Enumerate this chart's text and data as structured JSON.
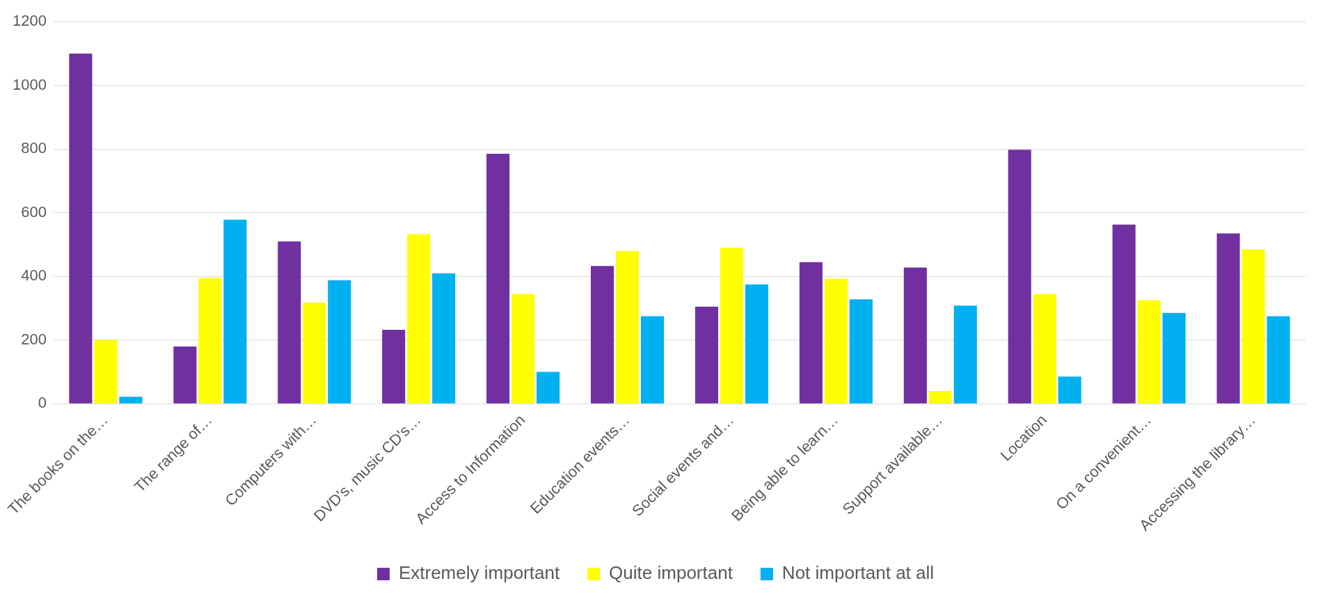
{
  "chart_data": {
    "type": "bar",
    "categories": [
      "The books on the…",
      "The range of…",
      "Computers with…",
      "DVD's, music CD's…",
      "Access to Information",
      "Education events…",
      "Social events and…",
      "Being able to learn…",
      "Support available…",
      "Location",
      "On a convenient…",
      "Accessing the library…"
    ],
    "series": [
      {
        "name": "Extremely important",
        "color": "#7030a0",
        "values": [
          1100,
          180,
          510,
          232,
          785,
          433,
          305,
          445,
          428,
          798,
          563,
          535
        ]
      },
      {
        "name": "Quite important",
        "color": "#ffff00",
        "values": [
          200,
          395,
          318,
          533,
          345,
          480,
          490,
          393,
          40,
          345,
          325,
          485
        ]
      },
      {
        "name": "Not important at all",
        "color": "#00b0f0",
        "values": [
          22,
          578,
          388,
          410,
          100,
          275,
          375,
          328,
          308,
          85,
          285,
          275
        ]
      }
    ],
    "ylim": [
      0,
      1200
    ],
    "yticks": [
      0,
      200,
      400,
      600,
      800,
      1000,
      1200
    ],
    "grid": "y",
    "legend": "bottom"
  }
}
